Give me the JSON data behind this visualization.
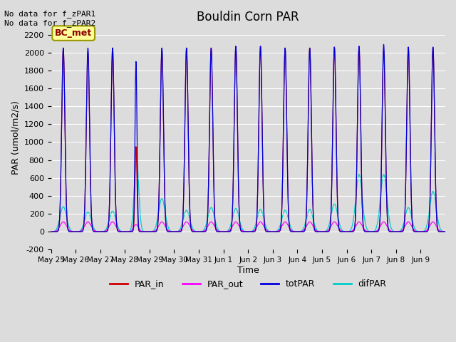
{
  "title": "Bouldin Corn PAR",
  "ylabel": "PAR (umol/m2/s)",
  "xlabel": "Time",
  "ylim": [
    -200,
    2300
  ],
  "yticks": [
    -200,
    0,
    200,
    400,
    600,
    800,
    1000,
    1200,
    1400,
    1600,
    1800,
    2000,
    2200
  ],
  "x_tick_labels": [
    "May 25",
    "May 26",
    "May 27",
    "May 28",
    "May 29",
    "May 30",
    "May 31",
    "Jun 1",
    "Jun 2",
    "Jun 3",
    "Jun 4",
    "Jun 5",
    "Jun 6",
    "Jun 7",
    "Jun 8",
    "Jun 9"
  ],
  "annotation_text": "No data for f_zPAR1\nNo data for f_zPAR2",
  "box_label": "BC_met",
  "colors": {
    "PAR_in": "#cc0000",
    "PAR_out": "#ff00ff",
    "totPAR": "#0000dd",
    "difPAR": "#00cccc"
  },
  "background_color": "#dcdcdc",
  "n_days": 16,
  "day_peaks": {
    "0": {
      "tot": 2050,
      "par_in": 2050,
      "par_out": 110,
      "dif": 280,
      "cloudy": false
    },
    "1": {
      "tot": 2050,
      "par_in": 2000,
      "par_out": 110,
      "dif": 220,
      "cloudy": false
    },
    "2": {
      "tot": 2050,
      "par_in": 2050,
      "par_out": 110,
      "dif": 230,
      "cloudy": false
    },
    "3": {
      "tot": 1900,
      "par_in": 950,
      "par_out": 80,
      "dif": 820,
      "cloudy": true
    },
    "4": {
      "tot": 2050,
      "par_in": 2020,
      "par_out": 110,
      "dif": 370,
      "cloudy": false
    },
    "5": {
      "tot": 2050,
      "par_in": 2050,
      "par_out": 110,
      "dif": 240,
      "cloudy": false
    },
    "6": {
      "tot": 2050,
      "par_in": 2050,
      "par_out": 110,
      "dif": 270,
      "cloudy": false
    },
    "7": {
      "tot": 2070,
      "par_in": 2070,
      "par_out": 110,
      "dif": 260,
      "cloudy": false
    },
    "8": {
      "tot": 2070,
      "par_in": 2070,
      "par_out": 110,
      "dif": 250,
      "cloudy": false
    },
    "9": {
      "tot": 2050,
      "par_in": 2050,
      "par_out": 110,
      "dif": 240,
      "cloudy": false
    },
    "10": {
      "tot": 2050,
      "par_in": 2050,
      "par_out": 110,
      "dif": 250,
      "cloudy": false
    },
    "11": {
      "tot": 2060,
      "par_in": 2060,
      "par_out": 110,
      "dif": 310,
      "cloudy": false
    },
    "12": {
      "tot": 2070,
      "par_in": 2070,
      "par_out": 110,
      "dif": 640,
      "cloudy": false
    },
    "13": {
      "tot": 2090,
      "par_in": 2020,
      "par_out": 110,
      "dif": 640,
      "cloudy": false
    },
    "14": {
      "tot": 2060,
      "par_in": 2060,
      "par_out": 110,
      "dif": 270,
      "cloudy": false
    },
    "15": {
      "tot": 2060,
      "par_in": 2060,
      "par_out": 110,
      "dif": 450,
      "cloudy": false
    }
  }
}
